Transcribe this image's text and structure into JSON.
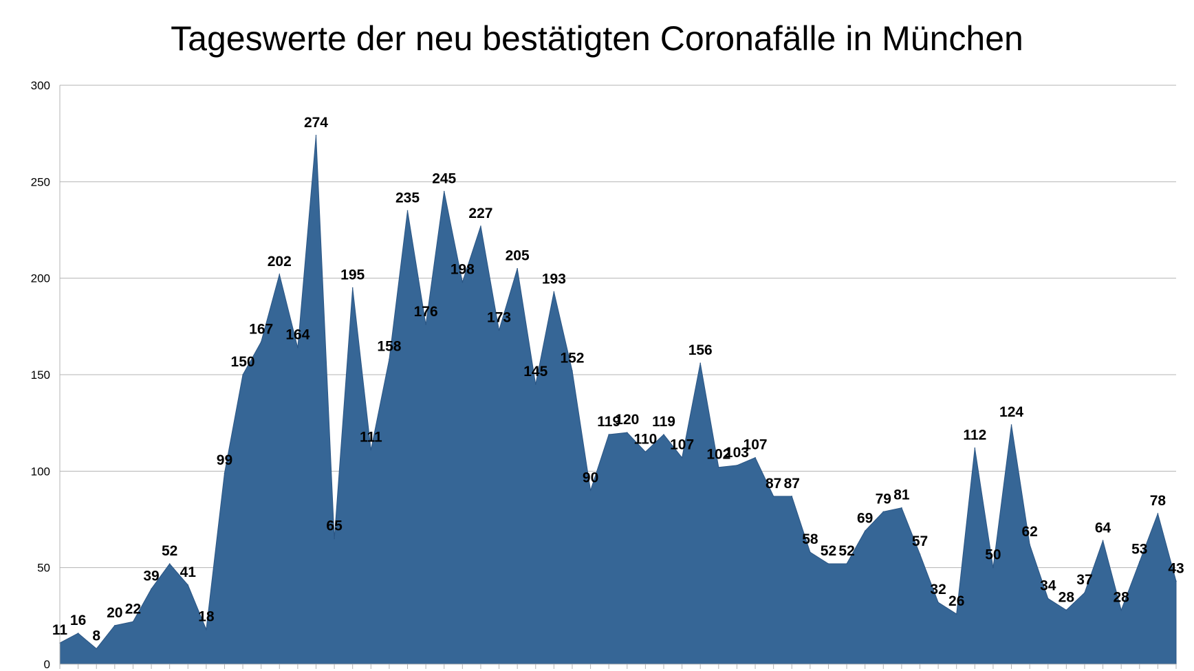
{
  "chart_data": {
    "type": "area",
    "title": "Tageswerte der neu bestätigten Coronafälle in München",
    "xlabel": "",
    "ylabel": "",
    "ylim": [
      0,
      300
    ],
    "yticks": [
      0,
      50,
      100,
      150,
      200,
      250,
      300
    ],
    "grid": true,
    "colors": {
      "area_fill": "#366696",
      "area_stroke": "#2a5584",
      "grid": "#b3b3b3",
      "axis": "#b3b3b3"
    },
    "series": [
      {
        "values": [
          11,
          16,
          8,
          20,
          22,
          39,
          52,
          41,
          18,
          99,
          150,
          167,
          202,
          164,
          274,
          65,
          195,
          111,
          158,
          235,
          176,
          245,
          198,
          227,
          173,
          205,
          145,
          193,
          152,
          90,
          119,
          120,
          110,
          119,
          107,
          156,
          102,
          103,
          107,
          87,
          87,
          58,
          52,
          52,
          69,
          79,
          81,
          57,
          32,
          26,
          112,
          50,
          124,
          62,
          34,
          28,
          37,
          64,
          28,
          53,
          78,
          43
        ]
      }
    ]
  }
}
